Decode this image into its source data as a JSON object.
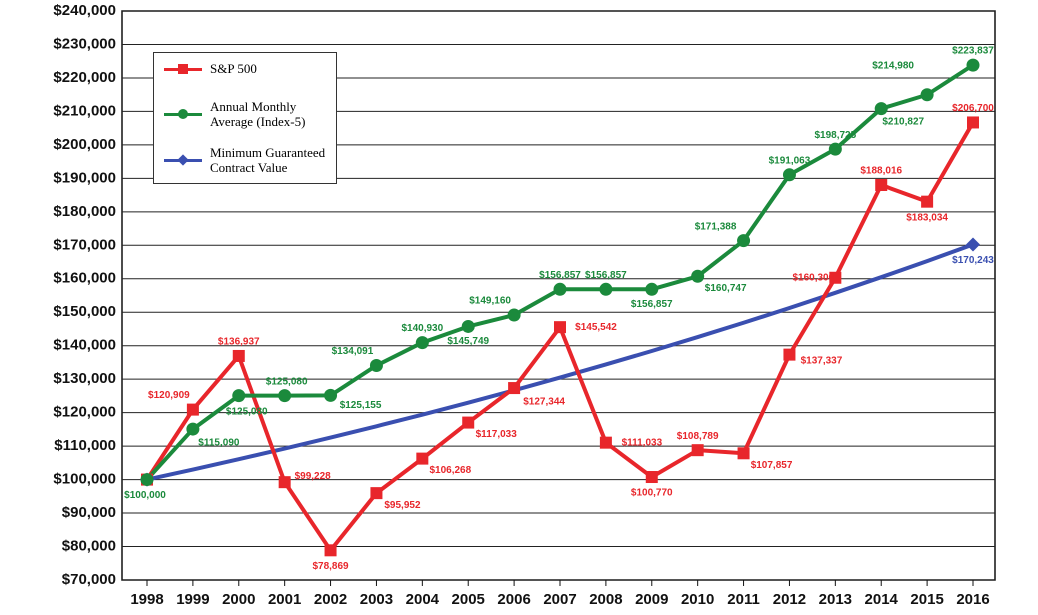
{
  "chart_data": {
    "type": "line",
    "categories": [
      "1998",
      "1999",
      "2000",
      "2001",
      "2002",
      "2003",
      "2004",
      "2005",
      "2006",
      "2007",
      "2008",
      "2009",
      "2010",
      "2011",
      "2012",
      "2013",
      "2014",
      "2015",
      "2016"
    ],
    "ylim": [
      70000,
      240000
    ],
    "yticks": [
      {
        "value": 70000,
        "label": "$70,000"
      },
      {
        "value": 80000,
        "label": "$80,000"
      },
      {
        "value": 90000,
        "label": "$90,000"
      },
      {
        "value": 100000,
        "label": "$100,000"
      },
      {
        "value": 110000,
        "label": "$110,000"
      },
      {
        "value": 120000,
        "label": "$120,000"
      },
      {
        "value": 130000,
        "label": "$130,000"
      },
      {
        "value": 140000,
        "label": "$140,000"
      },
      {
        "value": 150000,
        "label": "$150,000"
      },
      {
        "value": 160000,
        "label": "$160,000"
      },
      {
        "value": 170000,
        "label": "$170,000"
      },
      {
        "value": 180000,
        "label": "$180,000"
      },
      {
        "value": 190000,
        "label": "$190,000"
      },
      {
        "value": 200000,
        "label": "$200,000"
      },
      {
        "value": 210000,
        "label": "$210,000"
      },
      {
        "value": 220000,
        "label": "$220,000"
      },
      {
        "value": 230000,
        "label": "$230,000"
      },
      {
        "value": 240000,
        "label": "$240,000"
      }
    ],
    "grid": true,
    "legend": "upper-left",
    "series": [
      {
        "name": "S&P 500",
        "color": "#e8262b",
        "marker": "square",
        "values": [
          100000,
          120909,
          136937,
          99228,
          78869,
          95952,
          106268,
          117033,
          127344,
          145542,
          111033,
          100770,
          108789,
          107857,
          137337,
          160300,
          188016,
          183034,
          206700
        ],
        "value_labels": [
          null,
          "$120,909",
          "$136,937",
          "$99,228",
          "$78,869",
          "$95,952",
          "$106,268",
          "$117,033",
          "$127,344",
          "$145,542",
          "$111,033",
          "$100,770",
          "$108,789",
          "$107,857",
          "$137,337",
          "$160,300",
          "$188,016",
          "$183,034",
          "$206,700"
        ]
      },
      {
        "name": "Annual Monthly Average (Index-5)",
        "color": "#1b8a3c",
        "marker": "circle",
        "values": [
          100000,
          115090,
          125080,
          125080,
          125155,
          134091,
          140930,
          145749,
          149160,
          156857,
          156857,
          156857,
          160747,
          171388,
          191063,
          198725,
          210827,
          214980,
          223837
        ],
        "value_labels": [
          "$100,000",
          "$115,090",
          "$125,080",
          "$125,080",
          "$125,155",
          "$134,091",
          "$140,930",
          "$145,749",
          "$149,160",
          "$156,857",
          "$156,857",
          "$156,857",
          "$160,747",
          "$171,388",
          "$191,063",
          "$198,725",
          "$210,827",
          "$214,980",
          "$223,837"
        ]
      },
      {
        "name": "Minimum Guaranteed Contract Value",
        "color": "#3a4fb0",
        "marker": "diamond",
        "markers": "ends",
        "values": [
          100000,
          103000,
          106090,
          109273,
          112551,
          115927,
          119405,
          122987,
          126677,
          130477,
          134392,
          138423,
          142576,
          146853,
          151259,
          155797,
          160471,
          165285,
          170243
        ],
        "value_labels": [
          null,
          null,
          null,
          null,
          null,
          null,
          null,
          null,
          null,
          null,
          null,
          null,
          null,
          null,
          null,
          null,
          null,
          null,
          "$170,243"
        ]
      }
    ]
  }
}
